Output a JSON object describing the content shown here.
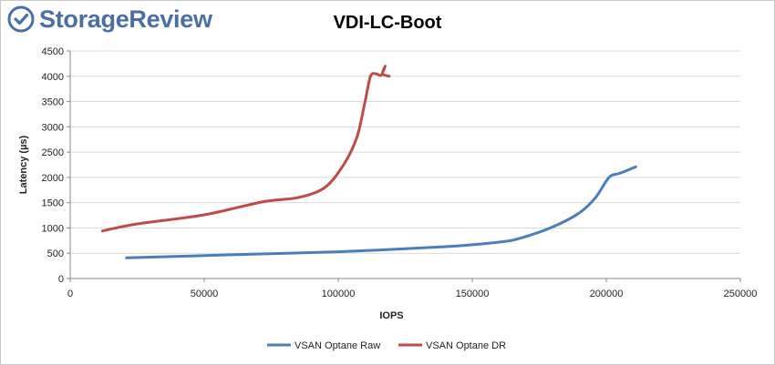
{
  "brand": {
    "name": "StorageReview",
    "logo_icon": "storagereview-logo-icon",
    "color": "#4a6fa5"
  },
  "chart_data": {
    "type": "line",
    "title": "VDI-LC-Boot",
    "xlabel": "IOPS",
    "ylabel": "Latency (µs)",
    "xlim": [
      0,
      250000
    ],
    "ylim": [
      0,
      4500
    ],
    "x_ticks": [
      "0",
      "50000",
      "100000",
      "150000",
      "200000",
      "250000"
    ],
    "y_ticks": [
      "0",
      "500",
      "1000",
      "1500",
      "2000",
      "2500",
      "3000",
      "3500",
      "4000",
      "4500"
    ],
    "grid": true,
    "legend_position": "bottom",
    "series": [
      {
        "name": "VSAN Optane Raw",
        "color": "#4a7ebb",
        "points": [
          [
            21000,
            410
          ],
          [
            60000,
            470
          ],
          [
            100000,
            530
          ],
          [
            140000,
            630
          ],
          [
            160000,
            720
          ],
          [
            168000,
            800
          ],
          [
            180000,
            1020
          ],
          [
            190000,
            1300
          ],
          [
            196000,
            1600
          ],
          [
            201000,
            2000
          ],
          [
            205000,
            2080
          ],
          [
            211000,
            2210
          ]
        ]
      },
      {
        "name": "VSAN Optane DR",
        "color": "#be4b48",
        "points": [
          [
            12000,
            940
          ],
          [
            25000,
            1080
          ],
          [
            50000,
            1260
          ],
          [
            72000,
            1520
          ],
          [
            85000,
            1600
          ],
          [
            95000,
            1800
          ],
          [
            102000,
            2250
          ],
          [
            107000,
            2800
          ],
          [
            110000,
            3500
          ],
          [
            112000,
            4000
          ],
          [
            114000,
            4050
          ],
          [
            116000,
            4020
          ],
          [
            117500,
            4200
          ],
          [
            116500,
            4050
          ],
          [
            119000,
            4000
          ]
        ]
      }
    ]
  }
}
